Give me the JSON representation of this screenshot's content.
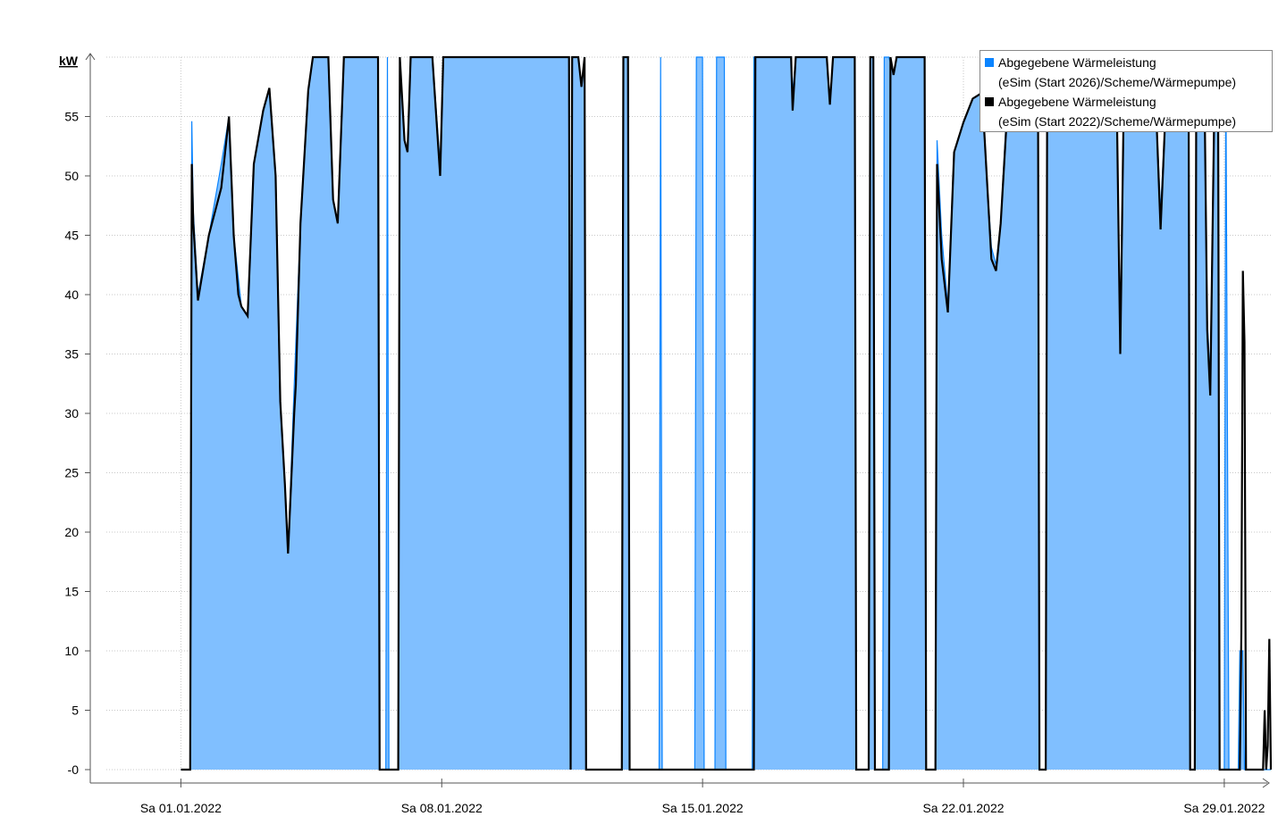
{
  "chart_data": {
    "type": "area",
    "ylabel": "kW",
    "ylim": [
      0,
      60
    ],
    "yticks": [
      0,
      5,
      10,
      15,
      20,
      25,
      30,
      35,
      40,
      45,
      50,
      55
    ],
    "ytick_labels": [
      "-0",
      "5",
      "10",
      "15",
      "20",
      "25",
      "30",
      "35",
      "40",
      "45",
      "50",
      "55"
    ],
    "xlim": [
      "2021-12-30",
      "2022-01-30 06:00"
    ],
    "xticks": [
      "2022-01-01",
      "2022-01-08",
      "2022-01-15",
      "2022-01-22",
      "2022-01-29"
    ],
    "xtick_labels": [
      "Sa 01.01.2022",
      "Sa 08.01.2022",
      "Sa 15.01.2022",
      "Sa 22.01.2022",
      "Sa 29.01.2022"
    ],
    "grid": true,
    "legend_position": "top-right",
    "series": [
      {
        "name": "Abgegebene Wärmeleistung (eSim (Start 2026)/Scheme/Wärmepumpe)",
        "color": "#0a84ff",
        "fill": "#80bfff",
        "style": "filled-area",
        "points": [
          [
            "2022-01-01 00:00",
            0
          ],
          [
            "2022-01-01 06:00",
            0
          ],
          [
            "2022-01-01 07:00",
            54.6
          ],
          [
            "2022-01-01 08:00",
            47
          ],
          [
            "2022-01-01 11:00",
            40
          ],
          [
            "2022-01-01 18:00",
            45
          ],
          [
            "2022-01-02 02:00",
            51
          ],
          [
            "2022-01-02 07:00",
            55
          ],
          [
            "2022-01-02 10:00",
            45
          ],
          [
            "2022-01-02 15:00",
            39
          ],
          [
            "2022-01-02 19:00",
            38.2
          ],
          [
            "2022-01-02 23:00",
            51
          ],
          [
            "2022-01-03 05:00",
            55.5
          ],
          [
            "2022-01-03 09:00",
            57.4
          ],
          [
            "2022-01-03 13:00",
            50
          ],
          [
            "2022-01-03 16:00",
            31
          ],
          [
            "2022-01-03 19:00",
            24
          ],
          [
            "2022-01-03 21:00",
            18.2
          ],
          [
            "2022-01-04 01:00",
            32.4
          ],
          [
            "2022-01-04 05:00",
            46
          ],
          [
            "2022-01-04 10:00",
            57.2
          ],
          [
            "2022-01-04 13:00",
            60
          ],
          [
            "2022-01-04 23:00",
            60
          ],
          [
            "2022-01-05 02:00",
            48
          ],
          [
            "2022-01-05 05:00",
            46
          ],
          [
            "2022-01-05 09:00",
            60
          ],
          [
            "2022-01-06 00:00",
            60
          ],
          [
            "2022-01-06 07:00",
            60
          ],
          [
            "2022-01-06 08:00",
            0
          ],
          [
            "2022-01-06 12:00",
            0
          ],
          [
            "2022-01-06 13:00",
            60
          ],
          [
            "2022-01-06 14:00",
            0
          ],
          [
            "2022-01-06 20:00",
            0
          ],
          [
            "2022-01-06 21:00",
            60
          ],
          [
            "2022-01-07 00:00",
            53
          ],
          [
            "2022-01-07 02:00",
            52
          ],
          [
            "2022-01-07 04:00",
            60
          ],
          [
            "2022-01-07 18:00",
            60
          ],
          [
            "2022-01-07 23:00",
            51
          ],
          [
            "2022-01-08 01:00",
            60
          ],
          [
            "2022-01-11 10:00",
            60
          ],
          [
            "2022-01-11 11:00",
            0
          ],
          [
            "2022-01-11 12:00",
            60
          ],
          [
            "2022-01-11 16:00",
            60
          ],
          [
            "2022-01-11 18:00",
            57.5
          ],
          [
            "2022-01-11 20:00",
            60
          ],
          [
            "2022-01-11 21:00",
            0
          ],
          [
            "2022-01-12 20:00",
            0
          ],
          [
            "2022-01-12 21:00",
            60
          ],
          [
            "2022-01-13 00:00",
            60
          ],
          [
            "2022-01-13 01:00",
            0
          ],
          [
            "2022-01-13 20:00",
            0
          ],
          [
            "2022-01-13 21:00",
            60
          ],
          [
            "2022-01-13 22:00",
            0
          ],
          [
            "2022-01-14 19:00",
            0
          ],
          [
            "2022-01-14 20:00",
            60
          ],
          [
            "2022-01-15 00:00",
            60
          ],
          [
            "2022-01-15 01:00",
            0
          ],
          [
            "2022-01-15 08:00",
            0
          ],
          [
            "2022-01-15 09:00",
            60
          ],
          [
            "2022-01-15 14:00",
            60
          ],
          [
            "2022-01-15 15:00",
            0
          ],
          [
            "2022-01-16 08:00",
            0
          ],
          [
            "2022-01-16 09:00",
            60
          ],
          [
            "2022-01-17 09:00",
            60
          ],
          [
            "2022-01-17 10:00",
            57
          ],
          [
            "2022-01-17 12:00",
            60
          ],
          [
            "2022-01-18 08:00",
            60
          ],
          [
            "2022-01-18 10:00",
            56
          ],
          [
            "2022-01-18 12:00",
            60
          ],
          [
            "2022-01-19 02:00",
            60
          ],
          [
            "2022-01-19 03:00",
            0
          ],
          [
            "2022-01-19 11:00",
            0
          ],
          [
            "2022-01-19 12:00",
            60
          ],
          [
            "2022-01-19 14:00",
            60
          ],
          [
            "2022-01-19 15:00",
            0
          ],
          [
            "2022-01-19 20:00",
            0
          ],
          [
            "2022-01-19 21:00",
            60
          ],
          [
            "2022-01-20 00:00",
            60
          ],
          [
            "2022-01-20 03:00",
            58.5
          ],
          [
            "2022-01-20 05:00",
            60
          ],
          [
            "2022-01-20 23:00",
            60
          ],
          [
            "2022-01-21 00:00",
            0
          ],
          [
            "2022-01-21 06:00",
            0
          ],
          [
            "2022-01-21 07:00",
            53
          ],
          [
            "2022-01-21 10:00",
            45
          ],
          [
            "2022-01-21 14:00",
            39
          ],
          [
            "2022-01-21 18:00",
            52
          ],
          [
            "2022-01-22 00:00",
            54.5
          ],
          [
            "2022-01-22 06:00",
            56.5
          ],
          [
            "2022-01-22 12:00",
            57
          ],
          [
            "2022-01-22 15:00",
            50
          ],
          [
            "2022-01-22 18:00",
            44
          ],
          [
            "2022-01-22 21:00",
            42.5
          ],
          [
            "2022-01-23 00:00",
            46
          ],
          [
            "2022-01-23 04:00",
            56
          ],
          [
            "2022-01-23 07:00",
            57.5
          ],
          [
            "2022-01-23 11:00",
            60
          ],
          [
            "2022-01-24 00:00",
            60
          ],
          [
            "2022-01-24 01:00",
            0
          ],
          [
            "2022-01-24 05:00",
            0
          ],
          [
            "2022-01-24 06:00",
            60
          ],
          [
            "2022-01-26 00:00",
            60
          ],
          [
            "2022-01-26 03:00",
            54
          ],
          [
            "2022-01-26 05:00",
            36
          ],
          [
            "2022-01-26 07:00",
            54
          ],
          [
            "2022-01-26 10:00",
            60
          ],
          [
            "2022-01-27 00:00",
            60
          ],
          [
            "2022-01-27 04:00",
            56
          ],
          [
            "2022-01-27 07:00",
            47
          ],
          [
            "2022-01-27 10:00",
            55
          ],
          [
            "2022-01-27 14:00",
            60
          ],
          [
            "2022-01-28 01:00",
            60
          ],
          [
            "2022-01-28 02:00",
            0
          ],
          [
            "2022-01-28 05:00",
            0
          ],
          [
            "2022-01-28 06:00",
            60
          ],
          [
            "2022-01-28 11:00",
            60
          ],
          [
            "2022-01-28 13:00",
            38
          ],
          [
            "2022-01-28 15:00",
            33
          ],
          [
            "2022-01-28 18:00",
            60
          ],
          [
            "2022-01-28 20:00",
            60
          ],
          [
            "2022-01-28 21:00",
            0
          ],
          [
            "2022-01-29 00:00",
            0
          ],
          [
            "2022-01-29 01:00",
            60
          ],
          [
            "2022-01-29 03:00",
            0
          ],
          [
            "2022-01-29 09:00",
            0
          ],
          [
            "2022-01-29 10:00",
            10
          ],
          [
            "2022-01-29 12:00",
            10
          ],
          [
            "2022-01-29 13:00",
            0
          ],
          [
            "2022-01-30 06:00",
            0
          ]
        ]
      },
      {
        "name": "Abgegebene Wärmeleistung (eSim (Start 2022)/Scheme/Wärmepumpe)",
        "color": "#000000",
        "style": "line",
        "points": [
          [
            "2022-01-01 00:00",
            0
          ],
          [
            "2022-01-01 06:00",
            0
          ],
          [
            "2022-01-01 07:00",
            51
          ],
          [
            "2022-01-01 08:00",
            46
          ],
          [
            "2022-01-01 11:00",
            39.5
          ],
          [
            "2022-01-01 18:00",
            45
          ],
          [
            "2022-01-02 02:00",
            49
          ],
          [
            "2022-01-02 07:00",
            55
          ],
          [
            "2022-01-02 10:00",
            45
          ],
          [
            "2022-01-02 13:00",
            40
          ],
          [
            "2022-01-02 15:00",
            39
          ],
          [
            "2022-01-02 19:00",
            38.2
          ],
          [
            "2022-01-02 23:00",
            51
          ],
          [
            "2022-01-03 05:00",
            55.5
          ],
          [
            "2022-01-03 09:00",
            57.4
          ],
          [
            "2022-01-03 13:00",
            50
          ],
          [
            "2022-01-03 16:00",
            31
          ],
          [
            "2022-01-03 19:00",
            24
          ],
          [
            "2022-01-03 21:00",
            18.2
          ],
          [
            "2022-01-04 01:00",
            30
          ],
          [
            "2022-01-04 02:00",
            32.4
          ],
          [
            "2022-01-04 05:00",
            46
          ],
          [
            "2022-01-04 10:00",
            57.2
          ],
          [
            "2022-01-04 13:00",
            60
          ],
          [
            "2022-01-04 23:00",
            60
          ],
          [
            "2022-01-05 02:00",
            48
          ],
          [
            "2022-01-05 05:00",
            46
          ],
          [
            "2022-01-05 09:00",
            60
          ],
          [
            "2022-01-06 00:00",
            60
          ],
          [
            "2022-01-06 07:00",
            60
          ],
          [
            "2022-01-06 08:00",
            0
          ],
          [
            "2022-01-06 20:00",
            0
          ],
          [
            "2022-01-06 21:00",
            60
          ],
          [
            "2022-01-07 00:00",
            53
          ],
          [
            "2022-01-07 02:00",
            52
          ],
          [
            "2022-01-07 04:00",
            60
          ],
          [
            "2022-01-07 18:00",
            60
          ],
          [
            "2022-01-07 23:00",
            50
          ],
          [
            "2022-01-08 01:00",
            60
          ],
          [
            "2022-01-11 10:00",
            60
          ],
          [
            "2022-01-11 11:00",
            0
          ],
          [
            "2022-01-11 12:00",
            60
          ],
          [
            "2022-01-11 16:00",
            60
          ],
          [
            "2022-01-11 18:00",
            57.5
          ],
          [
            "2022-01-11 20:00",
            60
          ],
          [
            "2022-01-11 21:00",
            0
          ],
          [
            "2022-01-12 20:00",
            0
          ],
          [
            "2022-01-12 21:00",
            60
          ],
          [
            "2022-01-13 00:00",
            60
          ],
          [
            "2022-01-13 01:00",
            0
          ],
          [
            "2022-01-16 09:00",
            0
          ],
          [
            "2022-01-16 10:00",
            60
          ],
          [
            "2022-01-17 09:00",
            60
          ],
          [
            "2022-01-17 10:00",
            55.5
          ],
          [
            "2022-01-17 12:00",
            60
          ],
          [
            "2022-01-18 08:00",
            60
          ],
          [
            "2022-01-18 10:00",
            56
          ],
          [
            "2022-01-18 12:00",
            60
          ],
          [
            "2022-01-19 02:00",
            60
          ],
          [
            "2022-01-19 03:00",
            0
          ],
          [
            "2022-01-19 11:00",
            0
          ],
          [
            "2022-01-19 12:00",
            60
          ],
          [
            "2022-01-19 14:00",
            60
          ],
          [
            "2022-01-19 15:00",
            0
          ],
          [
            "2022-01-20 00:00",
            0
          ],
          [
            "2022-01-20 01:00",
            60
          ],
          [
            "2022-01-20 03:00",
            58.5
          ],
          [
            "2022-01-20 05:00",
            60
          ],
          [
            "2022-01-20 23:00",
            60
          ],
          [
            "2022-01-21 00:00",
            0
          ],
          [
            "2022-01-21 06:00",
            0
          ],
          [
            "2022-01-21 07:00",
            51
          ],
          [
            "2022-01-21 10:00",
            43
          ],
          [
            "2022-01-21 14:00",
            38.5
          ],
          [
            "2022-01-21 18:00",
            52
          ],
          [
            "2022-01-22 00:00",
            54.5
          ],
          [
            "2022-01-22 06:00",
            56.5
          ],
          [
            "2022-01-22 12:00",
            57
          ],
          [
            "2022-01-22 15:00",
            50
          ],
          [
            "2022-01-22 18:00",
            43
          ],
          [
            "2022-01-22 21:00",
            42
          ],
          [
            "2022-01-23 00:00",
            46
          ],
          [
            "2022-01-23 04:00",
            55
          ],
          [
            "2022-01-23 07:00",
            57.5
          ],
          [
            "2022-01-23 11:00",
            60
          ],
          [
            "2022-01-24 00:00",
            60
          ],
          [
            "2022-01-24 01:00",
            0
          ],
          [
            "2022-01-24 05:00",
            0
          ],
          [
            "2022-01-24 06:00",
            60
          ],
          [
            "2022-01-26 00:00",
            60
          ],
          [
            "2022-01-26 03:00",
            54
          ],
          [
            "2022-01-26 05:00",
            35
          ],
          [
            "2022-01-26 07:00",
            54
          ],
          [
            "2022-01-26 10:00",
            60
          ],
          [
            "2022-01-27 00:00",
            60
          ],
          [
            "2022-01-27 04:00",
            56
          ],
          [
            "2022-01-27 07:00",
            45.5
          ],
          [
            "2022-01-27 10:00",
            55
          ],
          [
            "2022-01-27 14:00",
            60
          ],
          [
            "2022-01-28 01:00",
            60
          ],
          [
            "2022-01-28 02:00",
            0
          ],
          [
            "2022-01-28 05:00",
            0
          ],
          [
            "2022-01-28 06:00",
            60
          ],
          [
            "2022-01-28 11:00",
            60
          ],
          [
            "2022-01-28 13:00",
            37
          ],
          [
            "2022-01-28 15:00",
            31.5
          ],
          [
            "2022-01-28 18:00",
            60
          ],
          [
            "2022-01-28 20:00",
            60
          ],
          [
            "2022-01-28 21:00",
            0
          ],
          [
            "2022-01-29 10:00",
            0
          ],
          [
            "2022-01-29 11:00",
            11.5
          ],
          [
            "2022-01-29 12:00",
            42
          ],
          [
            "2022-01-29 13:00",
            36
          ],
          [
            "2022-01-29 14:00",
            0
          ],
          [
            "2022-01-30 01:00",
            0
          ],
          [
            "2022-01-30 02:00",
            5
          ],
          [
            "2022-01-30 03:00",
            0
          ],
          [
            "2022-01-30 04:00",
            2
          ],
          [
            "2022-01-30 05:00",
            11
          ],
          [
            "2022-01-30 06:00",
            0
          ]
        ]
      }
    ]
  },
  "legend": {
    "entries": [
      {
        "line1": "Abgegebene Wärmeleistung",
        "line2": "(eSim (Start 2026)/Scheme/Wärmepumpe)",
        "color": "#0a84ff"
      },
      {
        "line1": "Abgegebene Wärmeleistung",
        "line2": "(eSim (Start 2022)/Scheme/Wärmepumpe)",
        "color": "#000000"
      }
    ]
  }
}
